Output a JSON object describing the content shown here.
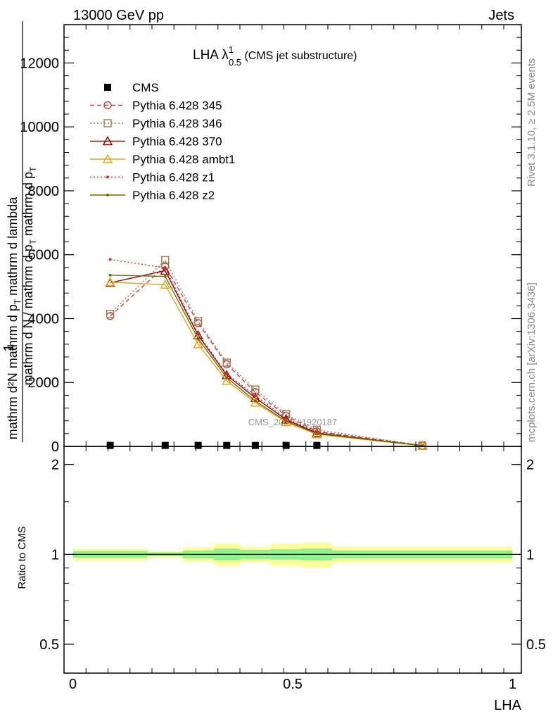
{
  "header": {
    "energy_label": "13000 GeV pp",
    "category_label": "Jets"
  },
  "side_labels": {
    "rivet": "Rivet 3.1.10, ≥ 2.5M events",
    "mcplots": "mcplots.cern.ch [arXiv:1306.3436]"
  },
  "watermark": "CMS_2021_I1920187",
  "chart_data": [
    {
      "type": "line",
      "title_main": "LHA λ",
      "title_sup": "1",
      "title_sub": "0.5",
      "title_tail": " (CMS jet substructure)",
      "ylabel_parts": [
        "1",
        "mathrm d N / mathrm d p",
        "mathrm d p",
        "mathrm d",
        "mathrm d lambda",
        "mathrm d^{2}N"
      ],
      "ylabel_numerator": "mathrm d²N",
      "ylabel_numerator_tail": "mathrm d p",
      "ylabel_numerator_sub": "T",
      "ylabel_numerator_end": " mathrm d lambda",
      "ylabel_denominator": "mathrm d N / mathrm d p",
      "ylabel_denominator_sub": "T",
      "ylabel_denominator_end": " mathrm d p",
      "ylabel_denominator_sub2": "T",
      "ylabel_one": "1",
      "xlim": [
        -0.02,
        1.02
      ],
      "ylim": [
        0,
        13200
      ],
      "y_ticks": [
        0,
        2000,
        4000,
        6000,
        8000,
        10000,
        12000
      ],
      "y_tick_labels": [
        "0",
        "2000",
        "4000",
        "6000",
        "8000",
        "10000",
        "12000"
      ],
      "legend_position": "top-left",
      "x": [
        0.085,
        0.21,
        0.285,
        0.35,
        0.415,
        0.485,
        0.555,
        0.795
      ],
      "series": [
        {
          "name": "CMS",
          "style": "data",
          "color": "#000000",
          "marker": "square-filled",
          "y": [
            30,
            30,
            30,
            30,
            30,
            30,
            30,
            0
          ]
        },
        {
          "name": "Pythia 6.428 345",
          "style": "dashed",
          "color": "#b34848",
          "marker": "circle",
          "y": [
            4080,
            5640,
            3860,
            2570,
            1700,
            960,
            470,
            25
          ]
        },
        {
          "name": "Pythia 6.428 346",
          "style": "dotted",
          "color": "#a0794f",
          "marker": "square",
          "y": [
            4150,
            5830,
            3920,
            2620,
            1780,
            1010,
            520,
            30
          ]
        },
        {
          "name": "Pythia 6.428 370",
          "style": "solid",
          "color": "#990000",
          "marker": "triangle",
          "y": [
            5120,
            5500,
            3480,
            2230,
            1520,
            840,
            420,
            20
          ]
        },
        {
          "name": "Pythia 6.428 ambt1",
          "style": "solid",
          "color": "#e8a21a",
          "marker": "triangle",
          "y": [
            5140,
            5060,
            3200,
            2050,
            1370,
            760,
            380,
            18
          ]
        },
        {
          "name": "Pythia 6.428 z1",
          "style": "dotted",
          "color": "#d22a1e",
          "marker": "dot",
          "y": [
            5850,
            5590,
            3520,
            2270,
            1590,
            880,
            450,
            22
          ]
        },
        {
          "name": "Pythia 6.428 z2",
          "style": "solid",
          "color": "#6b6b00",
          "marker": "dot",
          "y": [
            5360,
            5320,
            3370,
            2150,
            1420,
            790,
            400,
            20
          ]
        }
      ]
    },
    {
      "type": "area",
      "ylabel": "Ratio to CMS",
      "xlabel": "LHA",
      "log_y": true,
      "ylim": [
        0.4,
        2.3
      ],
      "y_ticks": [
        0.5,
        1,
        2
      ],
      "y_tick_labels": [
        "0.5",
        "1",
        "2"
      ],
      "x_ticks": [
        0,
        0.5,
        1
      ],
      "x_tick_labels": [
        "0",
        "0.5",
        "1"
      ],
      "bin_edges": [
        0,
        0.17,
        0.25,
        0.32,
        0.38,
        0.45,
        0.52,
        0.59,
        1.0
      ],
      "band_inner": [
        [
          0.975,
          1.025
        ],
        [
          0.985,
          1.015
        ],
        [
          0.97,
          1.03
        ],
        [
          0.955,
          1.045
        ],
        [
          0.965,
          1.035
        ],
        [
          0.96,
          1.04
        ],
        [
          0.955,
          1.045
        ],
        [
          0.97,
          1.03
        ]
      ],
      "band_outer": [
        [
          0.955,
          1.045
        ],
        [
          0.975,
          1.025
        ],
        [
          0.945,
          1.055
        ],
        [
          0.915,
          1.09
        ],
        [
          0.94,
          1.06
        ],
        [
          0.915,
          1.085
        ],
        [
          0.905,
          1.095
        ],
        [
          0.94,
          1.06
        ]
      ],
      "inner_color": "#8ef28e",
      "outer_color": "#ffff99",
      "reference": 1
    }
  ]
}
